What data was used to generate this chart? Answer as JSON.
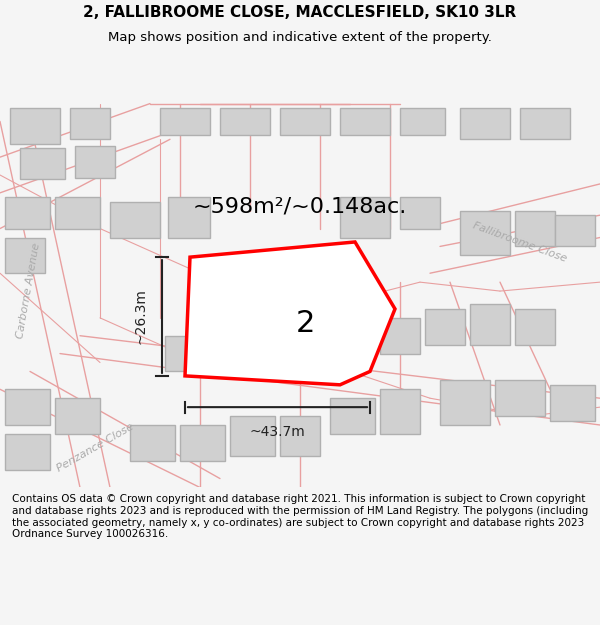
{
  "title_line1": "2, FALLIBROOME CLOSE, MACCLESFIELD, SK10 3LR",
  "title_line2": "Map shows position and indicative extent of the property.",
  "area_text": "~598m²/~0.148ac.",
  "dim_h": "~26.3m",
  "dim_w": "~43.7m",
  "label_number": "2",
  "copyright_text": "Contains OS data © Crown copyright and database right 2021. This information is subject to Crown copyright and database rights 2023 and is reproduced with the permission of HM Land Registry. The polygons (including the associated geometry, namely x, y co-ordinates) are subject to Crown copyright and database rights 2023 Ordnance Survey 100026316.",
  "background_color": "#f5f5f5",
  "map_bg_color": "#ffffff",
  "road_color": "#e8a0a0",
  "building_color": "#d0d0d0",
  "building_edge_color": "#b0b0b0",
  "property_color": "#ff0000",
  "dim_color": "#222222",
  "text_color": "#000000",
  "street_label_color": "#888888",
  "figsize": [
    6.0,
    6.25
  ],
  "dpi": 100
}
